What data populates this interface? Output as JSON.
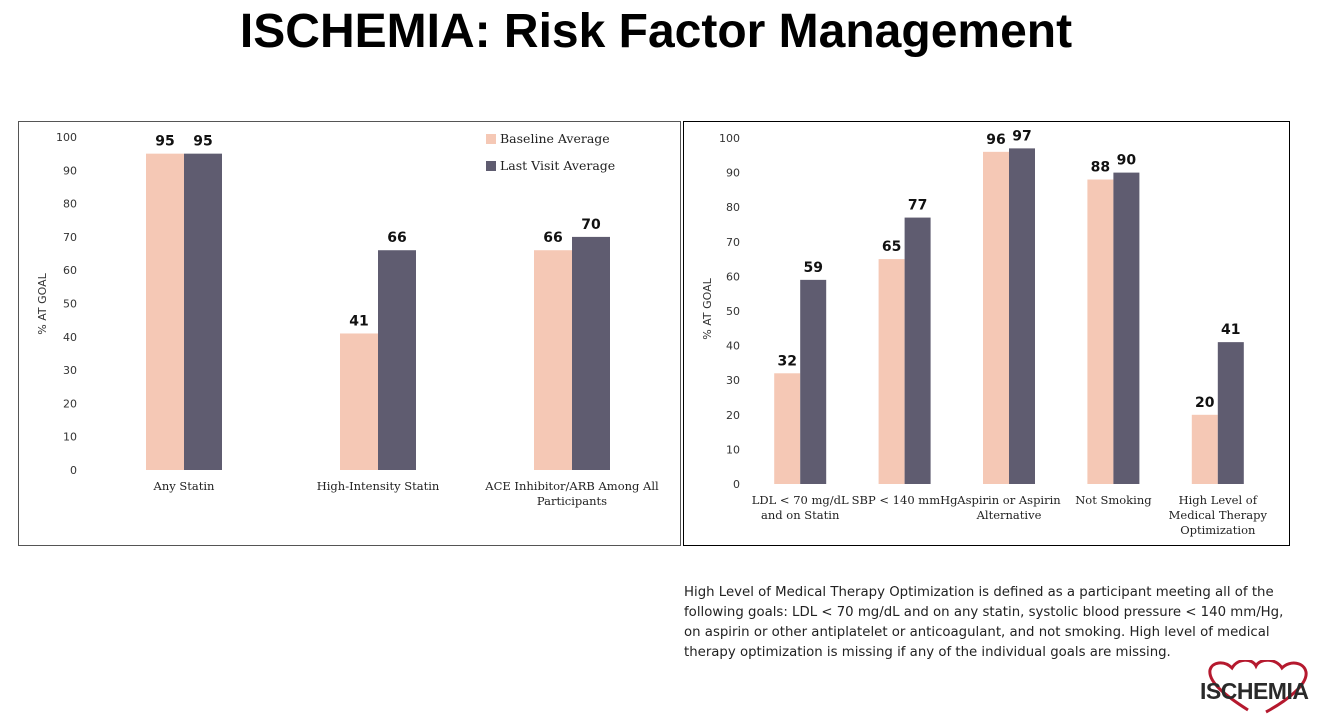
{
  "page": {
    "title": "ISCHEMIA: Risk Factor Management"
  },
  "colors": {
    "baseline": "#f5c8b5",
    "last_visit": "#5f5c70",
    "logo_heart": "#b5192e"
  },
  "chart_data": [
    {
      "type": "bar",
      "categories": [
        [
          "Any Statin"
        ],
        [
          "High-Intensity Statin"
        ],
        [
          "ACE Inhibitor/ARB Among All",
          "Participants"
        ]
      ],
      "series": [
        {
          "name": "Baseline Average",
          "values": [
            95,
            41,
            66
          ]
        },
        {
          "name": "Last Visit Average",
          "values": [
            95,
            66,
            70
          ]
        }
      ],
      "ylabel": "% AT GOAL",
      "ylim": [
        0,
        100
      ],
      "yticks": [
        0,
        10,
        20,
        30,
        40,
        50,
        60,
        70,
        80,
        90,
        100
      ],
      "legend": "top-right",
      "grid": false
    },
    {
      "type": "bar",
      "categories": [
        [
          "LDL < 70 mg/dL",
          "and on Statin"
        ],
        [
          "SBP < 140 mmHg"
        ],
        [
          "Aspirin or Aspirin",
          "Alternative"
        ],
        [
          "Not Smoking"
        ],
        [
          "High Level of",
          "Medical Therapy",
          "Optimization"
        ]
      ],
      "series": [
        {
          "name": "Baseline Average",
          "values": [
            32,
            65,
            96,
            88,
            20
          ]
        },
        {
          "name": "Last Visit Average",
          "values": [
            59,
            77,
            97,
            90,
            41
          ]
        }
      ],
      "ylabel": "% AT GOAL",
      "ylim": [
        0,
        100
      ],
      "yticks": [
        0,
        10,
        20,
        30,
        40,
        50,
        60,
        70,
        80,
        90,
        100
      ],
      "legend": "none",
      "grid": false
    }
  ],
  "footnote": "High Level of Medical Therapy Optimization is defined as a participant meeting all of the following goals: LDL < 70 mg/dL and on any statin, systolic blood pressure < 140 mm/Hg, on aspirin or other antiplatelet or anticoagulant, and not smoking. High level of medical therapy optimization is missing if any of the individual goals are missing.",
  "logo": {
    "text": "ISCHEMIA"
  }
}
